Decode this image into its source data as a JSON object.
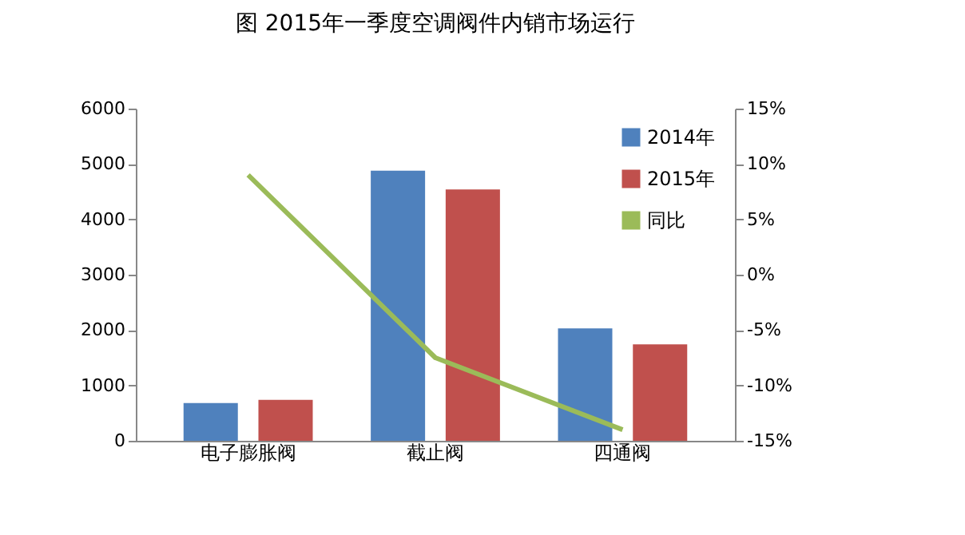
{
  "chart_data": {
    "type": "bar",
    "title": "图 2015年一季度空调阀件内销市场运行",
    "categories": [
      "电子膨胀阀",
      "截止阀",
      "四通阀"
    ],
    "series": [
      {
        "name": "2014年",
        "color": "#4f81bd",
        "values": [
          680,
          4880,
          2030
        ]
      },
      {
        "name": "2015年",
        "color": "#c0504d",
        "values": [
          740,
          4540,
          1740
        ]
      },
      {
        "name": "同比",
        "color": "#9bbb59",
        "type": "line",
        "axis": "y2",
        "values": [
          9,
          -7.5,
          -14
        ]
      }
    ],
    "ylim": [
      0,
      6000
    ],
    "yticks": [
      0,
      1000,
      2000,
      3000,
      4000,
      5000,
      6000
    ],
    "y2lim": [
      -15,
      15
    ],
    "y2ticks": [
      {
        "value": -15,
        "label": "-15%"
      },
      {
        "value": -10,
        "label": "-10%"
      },
      {
        "value": -5,
        "label": "-5%"
      },
      {
        "value": 0,
        "label": "0%"
      },
      {
        "value": 5,
        "label": "5%"
      },
      {
        "value": 10,
        "label": "10%"
      },
      {
        "value": 15,
        "label": "15%"
      }
    ],
    "grid": false,
    "legend": "top right"
  }
}
